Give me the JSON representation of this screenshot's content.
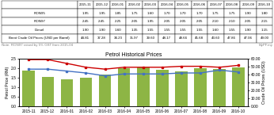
{
  "chart_data": {
    "type": "bar",
    "title": "Petrol Historical Prices",
    "categories": [
      "2015-11",
      "2015-12",
      "2016-01",
      "2016-02",
      "2016-03",
      "2016-04",
      "2016-05",
      "2016-06",
      "2016-07",
      "2016-08",
      "2016-09",
      "2016-10"
    ],
    "series": [
      {
        "name": "Brent Crude Oil Prices (USD per Barrel)",
        "type": "bar",
        "axis": "y2",
        "color": "#8db545",
        "values": [
          44.81,
          37.28,
          34.23,
          35.97,
          39.6,
          48.17,
          48.66,
          45.68,
          43.6,
          47.86,
          47.06,
          49.0
        ]
      },
      {
        "name": "RON95",
        "type": "line",
        "color": "#4472c4",
        "marker": "square",
        "values": [
          1.95,
          1.95,
          1.85,
          1.75,
          1.6,
          1.7,
          1.7,
          1.7,
          1.75,
          1.75,
          1.9,
          1.8
        ]
      },
      {
        "name": "RON97",
        "type": "line",
        "color": "#cc0000",
        "marker": "square",
        "values": [
          2.45,
          2.45,
          2.25,
          2.05,
          1.95,
          2.05,
          2.05,
          2.05,
          2.1,
          2.1,
          2.05,
          2.15
        ]
      }
    ],
    "ylabel": "Petrol Price (RM)",
    "y2label": "Crude Oil Prices (USD)",
    "ylim": [
      0.0,
      2.5
    ],
    "yticks": [
      {
        "value": 0.0,
        "label": "0.0"
      },
      {
        "value": 0.5,
        "label": "0.5"
      },
      {
        "value": 1.0,
        "label": "1.0"
      },
      {
        "value": 1.5,
        "label": "1.5"
      },
      {
        "value": 2.0,
        "label": "2.0"
      },
      {
        "value": 2.5,
        "label": "2.5"
      }
    ],
    "y2lim": [
      0,
      60
    ],
    "y2ticks": [
      {
        "value": 0,
        "label": "0.00"
      },
      {
        "value": 10,
        "label": "10.00"
      },
      {
        "value": 20,
        "label": "20.00"
      },
      {
        "value": 30,
        "label": "30.00"
      },
      {
        "value": 40,
        "label": "40.00"
      },
      {
        "value": 50,
        "label": "50.00"
      },
      {
        "value": 60,
        "label": "60.00"
      }
    ],
    "annotations": [
      "Note: RON97 raised by 5% GST from 2015-04",
      "MyPF.my"
    ],
    "table": {
      "rows": [
        {
          "name": "RON95",
          "values": [
            1.95,
            1.95,
            1.85,
            1.75,
            1.6,
            1.7,
            1.7,
            1.7,
            1.75,
            1.75,
            1.9,
            1.8
          ],
          "value_labels": [
            "1.95",
            "1.95",
            "1.85",
            "1.75",
            "1.60",
            "1.70",
            "1.70",
            "1.70",
            "1.75",
            "1.75",
            "1.90",
            "1.80"
          ]
        },
        {
          "name": "RON97",
          "values": [
            2.45,
            2.45,
            2.25,
            2.05,
            1.95,
            2.05,
            2.05,
            2.05,
            2.1,
            2.1,
            2.05,
            2.15
          ],
          "value_labels": [
            "2.45",
            "2.45",
            "2.25",
            "2.05",
            "1.95",
            "2.05",
            "2.05",
            "2.05",
            "2.10",
            "2.10",
            "2.05",
            "2.15"
          ]
        },
        {
          "name": "Diesel",
          "values": [
            1.9,
            1.9,
            1.6,
            1.35,
            1.55,
            1.55,
            1.55,
            1.55,
            1.6,
            1.55,
            1.9,
            1.15
          ],
          "value_labels": [
            "1.90",
            "1.90",
            "1.60",
            "1.35",
            "1.55",
            "1.55",
            "1.55",
            "1.55",
            "1.60",
            "1.55",
            "1.90",
            "1.15"
          ]
        },
        {
          "name": "Brent Crude Oil Prices (USD per Barrel)",
          "values": [
            44.81,
            37.28,
            34.23,
            35.97,
            39.6,
            48.17,
            48.66,
            45.68,
            43.6,
            47.86,
            47.06,
            49.0
          ],
          "value_labels": [
            "44.81",
            "37.28",
            "34.23",
            "35.97",
            "39.60",
            "48.17",
            "48.66",
            "45.68",
            "43.60",
            "47.86",
            "47.06",
            "49.00"
          ]
        }
      ]
    }
  }
}
